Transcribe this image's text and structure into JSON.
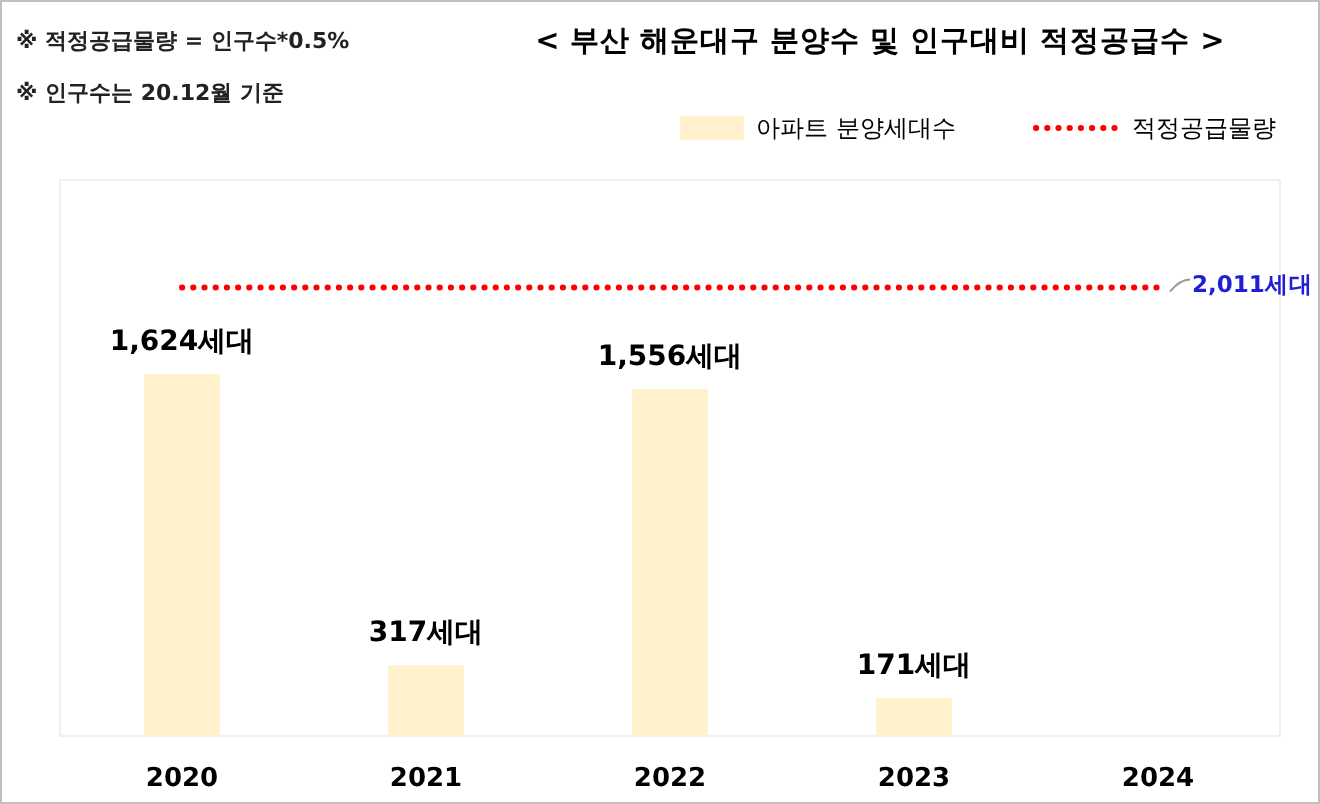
{
  "chart_data": {
    "type": "bar",
    "title": "< 부산 해운대구 분양수 및 인구대비 적정공급수 >",
    "annotations": [
      "※ 적정공급물량 = 인구수*0.5%",
      "※ 인구수는 20.12월 기준"
    ],
    "categories": [
      "2020",
      "2021",
      "2022",
      "2023",
      "2024"
    ],
    "series": [
      {
        "name": "아파트 분양세대수",
        "color": "#fff2cc",
        "values": [
          1624,
          317,
          1556,
          171,
          null
        ],
        "value_labels": [
          "1,624세대",
          "317세대",
          "1,556세대",
          "171세대",
          null
        ]
      },
      {
        "name": "적정공급물량",
        "type": "line",
        "line_style": "dotted",
        "color": "#ff0000",
        "values": [
          2011,
          2011,
          2011,
          2011,
          2011
        ],
        "value_labels": [
          null,
          null,
          null,
          null,
          "2,011세대"
        ]
      }
    ],
    "legend": "top right"
  }
}
